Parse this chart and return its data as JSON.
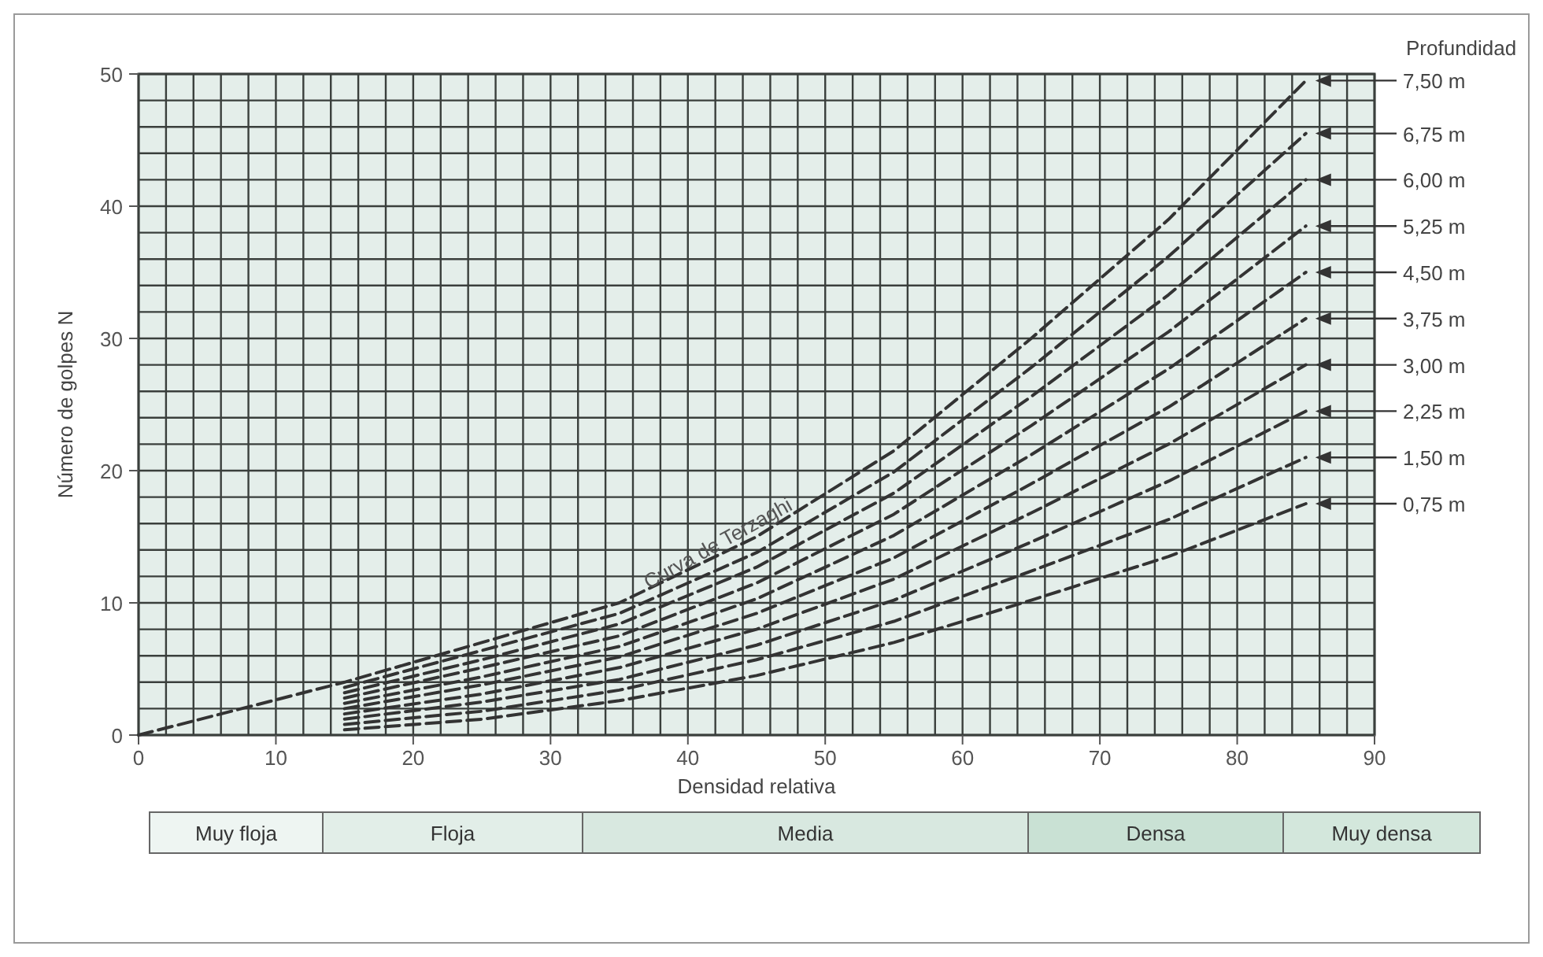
{
  "chart_data": {
    "type": "line",
    "xlabel": "Densidad relativa",
    "ylabel": "Número de golpes N",
    "legend_title": "Profundidad",
    "legend": "right",
    "line_style": "dashed",
    "marker": "none",
    "grid": true,
    "x": [
      15,
      25,
      35,
      45,
      55,
      65,
      75,
      85
    ],
    "xlim": [
      0,
      90
    ],
    "ylim": [
      0,
      50
    ],
    "xticks": [
      0,
      {
        "value": 2,
        "label": null
      },
      {
        "value": 4,
        "label": null
      },
      {
        "value": 6,
        "label": null
      },
      {
        "value": 8,
        "label": null
      },
      10,
      {
        "value": 12,
        "label": null
      },
      {
        "value": 14,
        "label": null
      },
      {
        "value": 16,
        "label": null
      },
      {
        "value": 18,
        "label": null
      },
      20,
      {
        "value": 22,
        "label": null
      },
      {
        "value": 24,
        "label": null
      },
      {
        "value": 26,
        "label": null
      },
      {
        "value": 28,
        "label": null
      },
      30,
      {
        "value": 32,
        "label": null
      },
      {
        "value": 34,
        "label": null
      },
      {
        "value": 36,
        "label": null
      },
      {
        "value": 38,
        "label": null
      },
      40,
      {
        "value": 42,
        "label": null
      },
      {
        "value": 44,
        "label": null
      },
      {
        "value": 46,
        "label": null
      },
      {
        "value": 48,
        "label": null
      },
      50,
      {
        "value": 52,
        "label": null
      },
      {
        "value": 54,
        "label": null
      },
      {
        "value": 56,
        "label": null
      },
      {
        "value": 58,
        "label": null
      },
      60,
      {
        "value": 62,
        "label": null
      },
      {
        "value": 64,
        "label": null
      },
      {
        "value": 66,
        "label": null
      },
      {
        "value": 68,
        "label": null
      },
      70,
      {
        "value": 72,
        "label": null
      },
      {
        "value": 74,
        "label": null
      },
      {
        "value": 76,
        "label": null
      },
      {
        "value": 78,
        "label": null
      },
      80,
      {
        "value": 82,
        "label": null
      },
      {
        "value": 84,
        "label": null
      },
      {
        "value": 86,
        "label": null
      },
      {
        "value": 88,
        "label": null
      },
      90
    ],
    "yticks": [
      0,
      {
        "value": 2,
        "label": null
      },
      {
        "value": 4,
        "label": null
      },
      {
        "value": 6,
        "label": null
      },
      {
        "value": 8,
        "label": null
      },
      10,
      {
        "value": 12,
        "label": null
      },
      {
        "value": 14,
        "label": null
      },
      {
        "value": 16,
        "label": null
      },
      {
        "value": 18,
        "label": null
      },
      20,
      {
        "value": 22,
        "label": null
      },
      {
        "value": 24,
        "label": null
      },
      {
        "value": 26,
        "label": null
      },
      {
        "value": 28,
        "label": null
      },
      30,
      {
        "value": 32,
        "label": null
      },
      {
        "value": 34,
        "label": null
      },
      {
        "value": 36,
        "label": null
      },
      {
        "value": 38,
        "label": null
      },
      40,
      {
        "value": 42,
        "label": null
      },
      {
        "value": 44,
        "label": null
      },
      {
        "value": 46,
        "label": null
      },
      {
        "value": 48,
        "label": null
      },
      50
    ],
    "series": [
      {
        "name": "7,50 m",
        "color": "#333333",
        "x": [
          0,
          15,
          25,
          35,
          45,
          55,
          65,
          75,
          85
        ],
        "values": [
          0,
          4,
          7,
          10,
          15,
          21.5,
          30,
          39,
          49.5
        ]
      },
      {
        "name": "6,75 m",
        "color": "#333333",
        "values": [
          3.6,
          6.4,
          9.2,
          13.8,
          19.9,
          27.8,
          36.2,
          45.5
        ]
      },
      {
        "name": "6,00 m",
        "color": "#333333",
        "values": [
          3.2,
          5.7,
          8.4,
          12.7,
          18.3,
          25.6,
          33.3,
          42
        ]
      },
      {
        "name": "5,25 m",
        "color": "#333333",
        "values": [
          2.8,
          5.1,
          7.5,
          11.5,
          16.7,
          23.4,
          30.5,
          38.5
        ]
      },
      {
        "name": "4,50 m",
        "color": "#333333",
        "values": [
          2.4,
          4.4,
          6.7,
          10.3,
          15.1,
          21.2,
          27.7,
          35
        ]
      },
      {
        "name": "3,75 m",
        "color": "#333333",
        "values": [
          2,
          3.8,
          5.9,
          9.2,
          13.4,
          19,
          24.8,
          31.5
        ]
      },
      {
        "name": "3,00 m",
        "color": "#333333",
        "values": [
          1.6,
          3.1,
          5.1,
          8,
          11.8,
          16.8,
          22,
          28
        ]
      },
      {
        "name": "2,25 m",
        "color": "#333333",
        "values": [
          1.2,
          2.5,
          4.2,
          6.8,
          10.2,
          14.6,
          19.2,
          24.5
        ]
      },
      {
        "name": "1,50 m",
        "color": "#333333",
        "values": [
          0.8,
          1.8,
          3.4,
          5.7,
          8.6,
          12.4,
          16.3,
          21
        ]
      },
      {
        "name": "0,75 m",
        "color": "#333333",
        "values": [
          0.4,
          1.2,
          2.6,
          4.5,
          7,
          10.2,
          13.5,
          17.5
        ]
      }
    ],
    "annotations": [
      "Curva de Terzaghi",
      "Muy floja",
      "Floja",
      "Media",
      "Densa",
      "Muy densa"
    ]
  }
}
